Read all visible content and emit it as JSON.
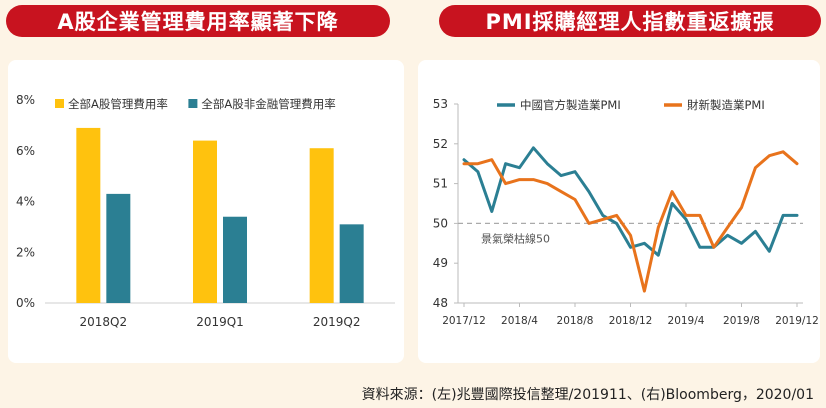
{
  "titles": {
    "left": "A股企業管理費用率顯著下降",
    "right": "PMI採購經理人指數重返擴張"
  },
  "source": "資料來源：(左)兆豐國際投信整理/201911、(右)Bloomberg，2020/01",
  "colors": {
    "title_bg": "#c8131f",
    "yellow": "#ffc20e",
    "teal": "#2b7f93",
    "orange": "#e8731c",
    "background": "#fdf4e6"
  },
  "chart_data": [
    {
      "type": "bar",
      "title": "",
      "categories": [
        "2018Q2",
        "2019Q1",
        "2019Q2"
      ],
      "series": [
        {
          "name": "全部A股管理費用率",
          "values": [
            6.9,
            6.4,
            6.1
          ],
          "color": "#ffc20e"
        },
        {
          "name": "全部A股非金融管理費用率",
          "values": [
            4.3,
            3.4,
            3.1
          ],
          "color": "#2b7f93"
        }
      ],
      "yticks": [
        "0%",
        "2%",
        "4%",
        "6%",
        "8%"
      ],
      "ylim": [
        0,
        8
      ],
      "legend": "top"
    },
    {
      "type": "line",
      "title": "",
      "x_ticks": [
        "2017/12",
        "2018/4",
        "2018/8",
        "2018/12",
        "2019/4",
        "2019/8",
        "2019/12"
      ],
      "yticks": [
        "48",
        "49",
        "50",
        "51",
        "52",
        "53"
      ],
      "ylim": [
        48,
        53
      ],
      "series": [
        {
          "name": "中國官方製造業PMI",
          "color": "#2b7f93",
          "values": [
            51.6,
            51.3,
            50.3,
            51.5,
            51.4,
            51.9,
            51.5,
            51.2,
            51.3,
            50.8,
            50.2,
            50.0,
            49.4,
            49.5,
            49.2,
            50.5,
            50.1,
            49.4,
            49.4,
            49.7,
            49.5,
            49.8,
            49.3,
            50.2,
            50.2
          ]
        },
        {
          "name": "財新製造業PMI",
          "color": "#e8731c",
          "values": [
            51.5,
            51.5,
            51.6,
            51.0,
            51.1,
            51.1,
            51.0,
            50.8,
            50.6,
            50.0,
            50.1,
            50.2,
            49.7,
            48.3,
            49.9,
            50.8,
            50.2,
            50.2,
            49.4,
            49.9,
            50.4,
            51.4,
            51.7,
            51.8,
            51.5
          ]
        }
      ],
      "reference_line": {
        "value": 50,
        "label": "景氣榮枯線50"
      },
      "legend": "top"
    }
  ]
}
